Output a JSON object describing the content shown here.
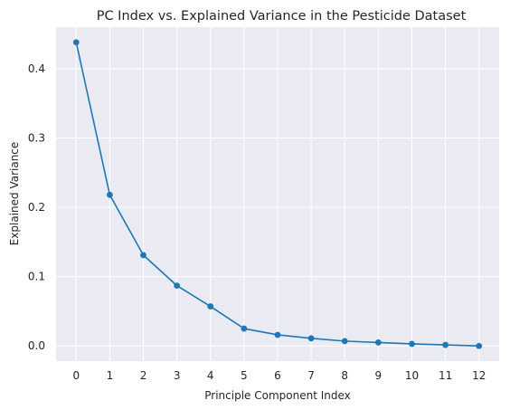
{
  "chart_data": {
    "type": "line",
    "title": "PC Index vs. Explained Variance in the Pesticide Dataset",
    "xlabel": "Principle Component Index",
    "ylabel": "Explained Variance",
    "x": [
      0,
      1,
      2,
      3,
      4,
      5,
      6,
      7,
      8,
      9,
      10,
      11,
      12
    ],
    "series": [
      {
        "values": [
          0.438,
          0.218,
          0.131,
          0.087,
          0.057,
          0.025,
          0.016,
          0.011,
          0.007,
          0.005,
          0.003,
          0.0015,
          0.0
        ]
      }
    ],
    "xticks": [
      "0",
      "1",
      "2",
      "3",
      "4",
      "5",
      "6",
      "7",
      "8",
      "9",
      "10",
      "11",
      "12"
    ],
    "yticks": [
      "0.0",
      "0.1",
      "0.2",
      "0.3",
      "0.4"
    ],
    "xlim": [
      -0.6,
      12.6
    ],
    "ylim": [
      -0.0219,
      0.4599
    ],
    "grid": true,
    "line_color": "#1f77b4",
    "background_color": "#eaeaf2",
    "grid_color": "#ffffff"
  }
}
